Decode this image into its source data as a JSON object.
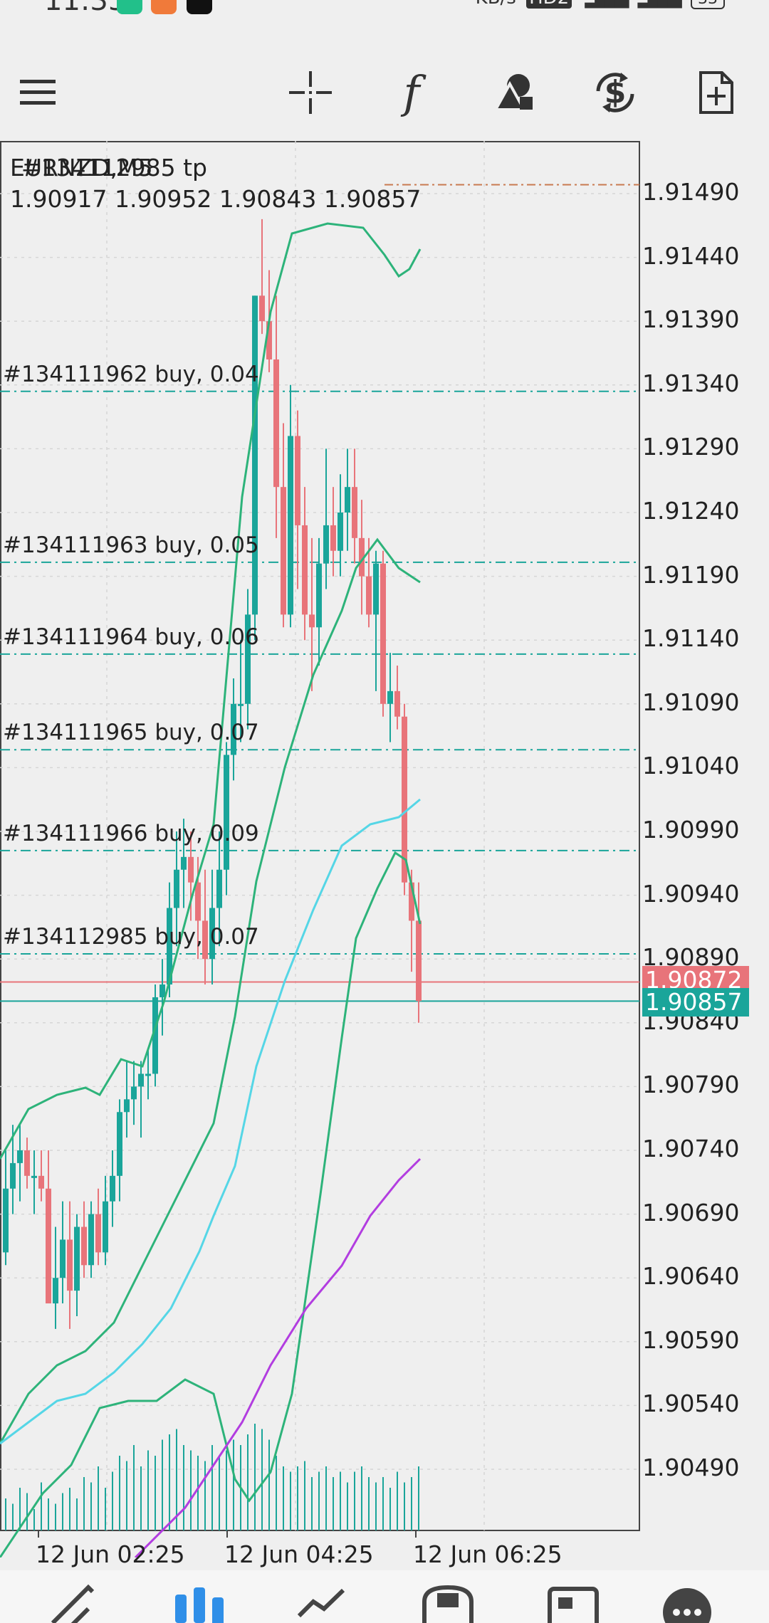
{
  "status_bar": {
    "time": "11:33",
    "more": "•••",
    "network_rate_unit": "KB/s",
    "hd_badge": "HD2",
    "battery": "33"
  },
  "toolbar": {
    "menu_icon": "hamburger-menu-icon",
    "crosshair_icon": "crosshair-icon",
    "indicators_label": "f",
    "objects_icon": "shapes-icon",
    "trade_icon": "dollar-cycle-icon",
    "template_icon": "add-document-icon"
  },
  "chart": {
    "title_overlay_a": "EURNZD,M5",
    "title_overlay_b": "#134112985 tp",
    "ohlc": "1.90917 1.90952 1.90843 1.90857",
    "bid_price": "1.90872",
    "ask_price": "1.90857",
    "bid_color": "#e8747a",
    "ask_color": "#1aa59a",
    "order_lines": [
      {
        "label": "#134111962 buy, 0.04",
        "price": 1.91335
      },
      {
        "label": "#134111963 buy, 0.05",
        "price": 1.91201
      },
      {
        "label": "#134111964 buy, 0.06",
        "price": 1.91129
      },
      {
        "label": "#134111965 buy, 0.07",
        "price": 1.91054
      },
      {
        "label": "#134111966 buy, 0.09",
        "price": 1.90975
      },
      {
        "label": "#134112985 buy, 0.07",
        "price": 1.90894
      }
    ],
    "tp_price": 1.91497,
    "bid_value": 1.90872,
    "ask_value": 1.90857
  },
  "chart_data": {
    "type": "candlestick",
    "symbol": "EURNZD",
    "timeframe": "M5",
    "price_axis": [
      "1.91490",
      "1.91440",
      "1.91390",
      "1.91340",
      "1.91290",
      "1.91240",
      "1.91190",
      "1.91140",
      "1.91090",
      "1.91040",
      "1.90990",
      "1.90940",
      "1.90890",
      "1.90840",
      "1.90790",
      "1.90740",
      "1.90690",
      "1.90640",
      "1.90590",
      "1.90540",
      "1.90490"
    ],
    "time_axis": [
      "12 Jun 02:25",
      "12 Jun 04:25",
      "12 Jun 06:25"
    ],
    "candles": [
      {
        "o": 1.9066,
        "h": 1.9074,
        "l": 1.9065,
        "c": 1.9071
      },
      {
        "o": 1.9071,
        "h": 1.9076,
        "l": 1.9069,
        "c": 1.9073
      },
      {
        "o": 1.9073,
        "h": 1.9076,
        "l": 1.907,
        "c": 1.9074
      },
      {
        "o": 1.9074,
        "h": 1.9075,
        "l": 1.9071,
        "c": 1.9072
      },
      {
        "o": 1.9072,
        "h": 1.9074,
        "l": 1.9069,
        "c": 1.9072
      },
      {
        "o": 1.9072,
        "h": 1.9074,
        "l": 1.907,
        "c": 1.9071
      },
      {
        "o": 1.9071,
        "h": 1.9074,
        "l": 1.9062,
        "c": 1.9062
      },
      {
        "o": 1.9062,
        "h": 1.9068,
        "l": 1.906,
        "c": 1.9064
      },
      {
        "o": 1.9064,
        "h": 1.907,
        "l": 1.9062,
        "c": 1.9067
      },
      {
        "o": 1.9067,
        "h": 1.907,
        "l": 1.906,
        "c": 1.9063
      },
      {
        "o": 1.9063,
        "h": 1.9069,
        "l": 1.9061,
        "c": 1.9068
      },
      {
        "o": 1.9068,
        "h": 1.907,
        "l": 1.9064,
        "c": 1.9065
      },
      {
        "o": 1.9065,
        "h": 1.907,
        "l": 1.9064,
        "c": 1.9069
      },
      {
        "o": 1.9069,
        "h": 1.9071,
        "l": 1.9065,
        "c": 1.9066
      },
      {
        "o": 1.9066,
        "h": 1.9072,
        "l": 1.9065,
        "c": 1.907
      },
      {
        "o": 1.907,
        "h": 1.9074,
        "l": 1.9068,
        "c": 1.9072
      },
      {
        "o": 1.9072,
        "h": 1.9078,
        "l": 1.907,
        "c": 1.9077
      },
      {
        "o": 1.9077,
        "h": 1.9081,
        "l": 1.9075,
        "c": 1.9078
      },
      {
        "o": 1.9078,
        "h": 1.9081,
        "l": 1.9076,
        "c": 1.9079
      },
      {
        "o": 1.9079,
        "h": 1.9081,
        "l": 1.9075,
        "c": 1.908
      },
      {
        "o": 1.908,
        "h": 1.9082,
        "l": 1.9078,
        "c": 1.908
      },
      {
        "o": 1.908,
        "h": 1.9087,
        "l": 1.9079,
        "c": 1.9086
      },
      {
        "o": 1.9086,
        "h": 1.9089,
        "l": 1.9083,
        "c": 1.9087
      },
      {
        "o": 1.9087,
        "h": 1.9095,
        "l": 1.9086,
        "c": 1.9093
      },
      {
        "o": 1.9093,
        "h": 1.9099,
        "l": 1.909,
        "c": 1.9096
      },
      {
        "o": 1.9096,
        "h": 1.91,
        "l": 1.9093,
        "c": 1.9097
      },
      {
        "o": 1.9097,
        "h": 1.9099,
        "l": 1.9092,
        "c": 1.9095
      },
      {
        "o": 1.9095,
        "h": 1.9097,
        "l": 1.9089,
        "c": 1.9092
      },
      {
        "o": 1.9092,
        "h": 1.9096,
        "l": 1.9087,
        "c": 1.9089
      },
      {
        "o": 1.9089,
        "h": 1.9096,
        "l": 1.9087,
        "c": 1.9093
      },
      {
        "o": 1.9093,
        "h": 1.9099,
        "l": 1.909,
        "c": 1.9096
      },
      {
        "o": 1.9096,
        "h": 1.9106,
        "l": 1.9094,
        "c": 1.9105
      },
      {
        "o": 1.9105,
        "h": 1.9111,
        "l": 1.9103,
        "c": 1.9109
      },
      {
        "o": 1.9109,
        "h": 1.9114,
        "l": 1.9106,
        "c": 1.9109
      },
      {
        "o": 1.9109,
        "h": 1.9118,
        "l": 1.9107,
        "c": 1.9116
      },
      {
        "o": 1.9116,
        "h": 1.9141,
        "l": 1.9114,
        "c": 1.9141
      },
      {
        "o": 1.9141,
        "h": 1.9147,
        "l": 1.9138,
        "c": 1.9139
      },
      {
        "o": 1.9139,
        "h": 1.9143,
        "l": 1.9135,
        "c": 1.9136
      },
      {
        "o": 1.9136,
        "h": 1.9141,
        "l": 1.9122,
        "c": 1.9126
      },
      {
        "o": 1.9126,
        "h": 1.9131,
        "l": 1.9115,
        "c": 1.9116
      },
      {
        "o": 1.9116,
        "h": 1.9134,
        "l": 1.9115,
        "c": 1.913
      },
      {
        "o": 1.913,
        "h": 1.9132,
        "l": 1.9118,
        "c": 1.9123
      },
      {
        "o": 1.9123,
        "h": 1.9126,
        "l": 1.9114,
        "c": 1.9116
      },
      {
        "o": 1.9116,
        "h": 1.9122,
        "l": 1.911,
        "c": 1.9115
      },
      {
        "o": 1.9115,
        "h": 1.9122,
        "l": 1.9112,
        "c": 1.912
      },
      {
        "o": 1.912,
        "h": 1.9129,
        "l": 1.9118,
        "c": 1.9123
      },
      {
        "o": 1.9123,
        "h": 1.9126,
        "l": 1.9119,
        "c": 1.9121
      },
      {
        "o": 1.9121,
        "h": 1.9127,
        "l": 1.9119,
        "c": 1.9124
      },
      {
        "o": 1.9124,
        "h": 1.9129,
        "l": 1.9121,
        "c": 1.9126
      },
      {
        "o": 1.9126,
        "h": 1.9129,
        "l": 1.912,
        "c": 1.9122
      },
      {
        "o": 1.9122,
        "h": 1.9125,
        "l": 1.9116,
        "c": 1.9119
      },
      {
        "o": 1.9119,
        "h": 1.9122,
        "l": 1.9115,
        "c": 1.9116
      },
      {
        "o": 1.9116,
        "h": 1.9121,
        "l": 1.911,
        "c": 1.912
      },
      {
        "o": 1.912,
        "h": 1.9121,
        "l": 1.9108,
        "c": 1.9109
      },
      {
        "o": 1.9109,
        "h": 1.9113,
        "l": 1.9106,
        "c": 1.911
      },
      {
        "o": 1.911,
        "h": 1.9112,
        "l": 1.9107,
        "c": 1.9108
      },
      {
        "o": 1.9108,
        "h": 1.9109,
        "l": 1.9094,
        "c": 1.9095
      },
      {
        "o": 1.9095,
        "h": 1.9096,
        "l": 1.9088,
        "c": 1.9092
      },
      {
        "o": 1.9092,
        "h": 1.9095,
        "l": 1.9084,
        "c": 1.90857
      }
    ],
    "volume": [
      30,
      25,
      40,
      35,
      20,
      45,
      30,
      25,
      35,
      40,
      30,
      50,
      45,
      60,
      40,
      55,
      70,
      65,
      80,
      60,
      75,
      70,
      85,
      90,
      95,
      80,
      75,
      70,
      65,
      80,
      70,
      75,
      85,
      80,
      90,
      100,
      95,
      85,
      70,
      60,
      55,
      60,
      65,
      50,
      55,
      60,
      50,
      55,
      45,
      55,
      60,
      50,
      45,
      50,
      40,
      55,
      45,
      50,
      60
    ],
    "indicators": [
      {
        "type": "bollinger_upper",
        "color": "#2db37a"
      },
      {
        "type": "bollinger_middle",
        "color": "#2db37a"
      },
      {
        "type": "bollinger_lower",
        "color": "#2db37a"
      },
      {
        "type": "moving_average_fast",
        "color": "#55d6e6"
      },
      {
        "type": "moving_average_slow",
        "color": "#b23de0"
      }
    ]
  },
  "bottom_nav": {
    "items": [
      "quotes-icon",
      "chart-icon",
      "trade-icon",
      "history-icon",
      "news-icon",
      "more-icon"
    ],
    "active_index": 1
  }
}
